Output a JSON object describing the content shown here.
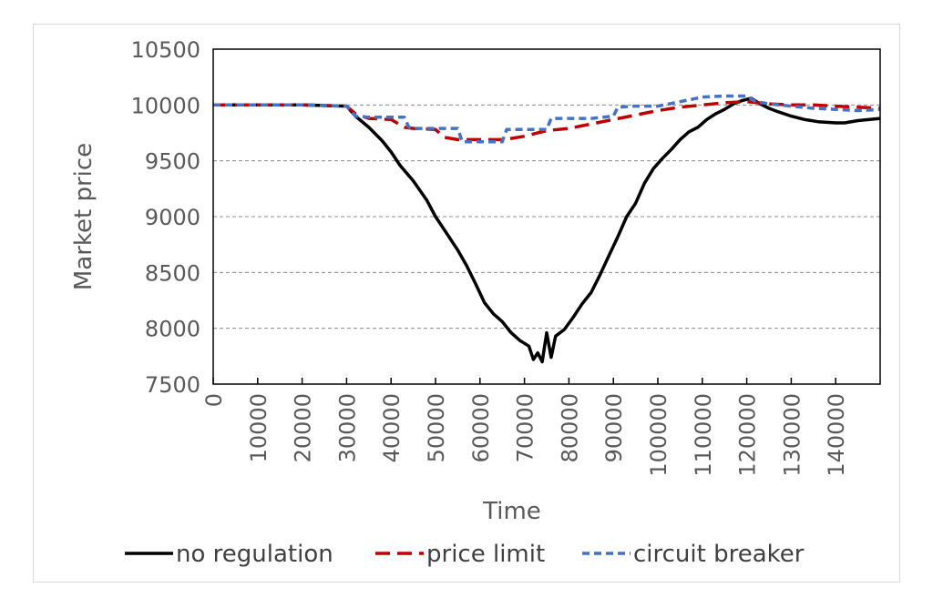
{
  "chart_data": {
    "type": "line",
    "title": "",
    "xlabel": "Time",
    "ylabel": "Market price",
    "xlim": [
      0,
      150000
    ],
    "ylim": [
      7500,
      10500
    ],
    "yticks": [
      7500,
      8000,
      8500,
      9000,
      9500,
      10000,
      10500
    ],
    "xticks": [
      0,
      10000,
      20000,
      30000,
      40000,
      50000,
      60000,
      70000,
      80000,
      90000,
      100000,
      110000,
      120000,
      130000,
      140000
    ],
    "grid": "horizontal dashed",
    "legend": "bottom",
    "series": [
      {
        "name": "no regulation",
        "color": "#000000",
        "style": "solid",
        "x": [
          0,
          10000,
          20000,
          30000,
          32000,
          35000,
          38000,
          40000,
          42000,
          45000,
          48000,
          50000,
          52000,
          55000,
          57000,
          59000,
          61000,
          63000,
          65000,
          67000,
          69000,
          71000,
          72000,
          73000,
          74000,
          75000,
          76000,
          77000,
          79000,
          81000,
          83000,
          85000,
          87000,
          89000,
          91000,
          93000,
          95000,
          97000,
          99000,
          101000,
          103000,
          105000,
          107000,
          109000,
          111000,
          113000,
          115000,
          117000,
          119000,
          121000,
          123000,
          125000,
          127000,
          130000,
          133000,
          136000,
          140000,
          142000,
          145000,
          150000
        ],
        "values": [
          10000,
          10000,
          10000,
          9990,
          9900,
          9800,
          9680,
          9580,
          9460,
          9320,
          9150,
          9000,
          8880,
          8700,
          8560,
          8400,
          8230,
          8130,
          8060,
          7960,
          7890,
          7840,
          7720,
          7780,
          7700,
          7960,
          7740,
          7930,
          7990,
          8100,
          8220,
          8320,
          8480,
          8650,
          8820,
          9000,
          9120,
          9300,
          9430,
          9520,
          9600,
          9690,
          9760,
          9800,
          9870,
          9920,
          9960,
          10010,
          10040,
          10060,
          10010,
          9970,
          9940,
          9900,
          9870,
          9850,
          9840,
          9840,
          9860,
          9880
        ]
      },
      {
        "name": "price limit",
        "color": "#c00000",
        "style": "longdash",
        "x": [
          0,
          10000,
          20000,
          30000,
          32000,
          35000,
          40000,
          43000,
          45000,
          50000,
          52000,
          55000,
          60000,
          65000,
          67000,
          70000,
          75000,
          80000,
          85000,
          90000,
          95000,
          100000,
          105000,
          110000,
          115000,
          120000,
          125000,
          130000,
          135000,
          140000,
          145000,
          150000
        ],
        "values": [
          10000,
          10000,
          10000,
          9990,
          9920,
          9880,
          9870,
          9800,
          9790,
          9780,
          9710,
          9690,
          9690,
          9690,
          9700,
          9720,
          9770,
          9790,
          9830,
          9870,
          9910,
          9950,
          9980,
          10000,
          10020,
          10030,
          10010,
          10000,
          10000,
          9990,
          9980,
          9970
        ]
      },
      {
        "name": "circuit breaker",
        "color": "#4472c4",
        "style": "dash",
        "x": [
          0,
          10000,
          20000,
          30000,
          32000,
          35000,
          40000,
          43000,
          44000,
          45000,
          50000,
          55000,
          56000,
          58000,
          60000,
          65000,
          66000,
          70000,
          75000,
          76000,
          80000,
          85000,
          90000,
          91000,
          95000,
          100000,
          105000,
          110000,
          115000,
          120000,
          122000,
          125000,
          130000,
          135000,
          140000,
          145000,
          150000
        ],
        "values": [
          10000,
          10000,
          10000,
          9990,
          9900,
          9890,
          9890,
          9890,
          9800,
          9790,
          9790,
          9790,
          9670,
          9670,
          9670,
          9670,
          9780,
          9780,
          9780,
          9880,
          9880,
          9880,
          9900,
          9980,
          9990,
          9990,
          10030,
          10070,
          10080,
          10080,
          10030,
          10010,
          9990,
          9970,
          9960,
          9950,
          9960
        ]
      }
    ]
  }
}
